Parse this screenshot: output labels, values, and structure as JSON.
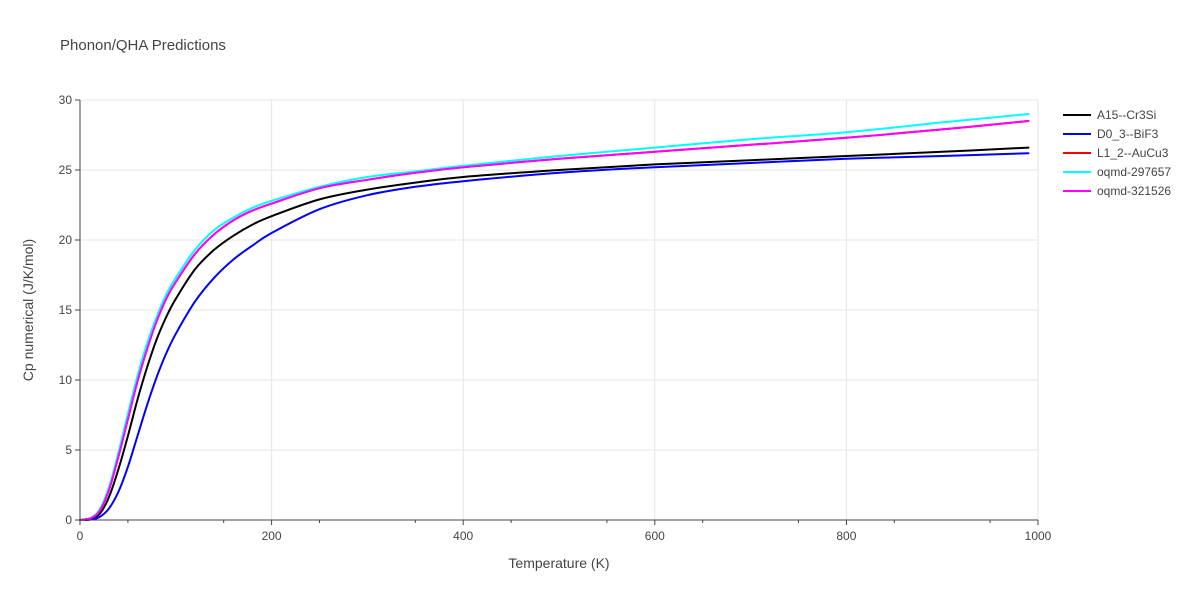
{
  "chart_data": {
    "type": "line",
    "title": "Phonon/QHA Predictions",
    "xlabel": "Temperature (K)",
    "ylabel": "Cp numerical (J/K/mol)",
    "xlim": [
      0,
      1000
    ],
    "ylim": [
      0,
      30
    ],
    "x_ticks": [
      0,
      200,
      400,
      600,
      800,
      1000
    ],
    "y_ticks": [
      0,
      5,
      10,
      15,
      20,
      25,
      30
    ],
    "grid": true,
    "legend_position": "right",
    "series": [
      {
        "name": "A15--Cr3Si",
        "color": "#000000",
        "x": [
          0,
          10,
          20,
          30,
          40,
          50,
          60,
          70,
          80,
          90,
          100,
          120,
          140,
          160,
          180,
          200,
          250,
          300,
          350,
          400,
          500,
          600,
          700,
          800,
          900,
          990
        ],
        "y": [
          0,
          0.1,
          0.4,
          1.6,
          3.6,
          6.0,
          8.6,
          10.9,
          12.9,
          14.5,
          15.8,
          17.9,
          19.3,
          20.3,
          21.1,
          21.7,
          22.9,
          23.6,
          24.1,
          24.5,
          25.0,
          25.4,
          25.7,
          26.0,
          26.3,
          26.6
        ]
      },
      {
        "name": "D0_3--BiF3",
        "color": "#0000ff",
        "x": [
          0,
          10,
          20,
          30,
          40,
          50,
          60,
          70,
          80,
          90,
          100,
          120,
          140,
          160,
          180,
          200,
          250,
          300,
          350,
          400,
          500,
          600,
          700,
          800,
          900,
          990
        ],
        "y": [
          0,
          0.02,
          0.2,
          0.8,
          2.0,
          3.8,
          6.0,
          8.2,
          10.2,
          11.9,
          13.3,
          15.6,
          17.3,
          18.6,
          19.6,
          20.5,
          22.2,
          23.2,
          23.8,
          24.2,
          24.8,
          25.2,
          25.5,
          25.8,
          26.0,
          26.2
        ]
      },
      {
        "name": "L1_2--AuCu3",
        "color": "#ff0000",
        "x": [
          0,
          10,
          20,
          30,
          40,
          50,
          60,
          70,
          80,
          90,
          100,
          120,
          140,
          160,
          180,
          200,
          250,
          300,
          350,
          400,
          500,
          600,
          700,
          800,
          900,
          990
        ],
        "y": [
          0,
          0.1,
          0.6,
          2.1,
          4.5,
          7.2,
          9.9,
          12.2,
          14.2,
          15.8,
          17.0,
          19.0,
          20.4,
          21.4,
          22.1,
          22.6,
          23.7,
          24.3,
          24.8,
          25.2,
          25.8,
          26.3,
          26.8,
          27.3,
          27.9,
          28.5
        ]
      },
      {
        "name": "oqmd-297657",
        "color": "#00ffff",
        "x": [
          0,
          10,
          20,
          30,
          40,
          50,
          60,
          70,
          80,
          90,
          100,
          120,
          140,
          160,
          180,
          200,
          250,
          300,
          350,
          400,
          500,
          600,
          700,
          800,
          900,
          990
        ],
        "y": [
          0,
          0.1,
          0.7,
          2.3,
          4.8,
          7.6,
          10.3,
          12.6,
          14.5,
          16.1,
          17.3,
          19.3,
          20.7,
          21.6,
          22.3,
          22.8,
          23.8,
          24.5,
          24.9,
          25.3,
          26.0,
          26.6,
          27.2,
          27.7,
          28.4,
          29.0
        ]
      },
      {
        "name": "oqmd-321526",
        "color": "#ff00ff",
        "x": [
          0,
          10,
          20,
          30,
          40,
          50,
          60,
          70,
          80,
          90,
          100,
          120,
          140,
          160,
          180,
          200,
          250,
          300,
          350,
          400,
          500,
          600,
          700,
          800,
          900,
          990
        ],
        "y": [
          0,
          0.1,
          0.6,
          2.1,
          4.5,
          7.2,
          9.9,
          12.2,
          14.2,
          15.8,
          17.0,
          19.0,
          20.4,
          21.4,
          22.1,
          22.6,
          23.7,
          24.3,
          24.8,
          25.2,
          25.8,
          26.3,
          26.8,
          27.3,
          27.9,
          28.5
        ]
      }
    ]
  }
}
